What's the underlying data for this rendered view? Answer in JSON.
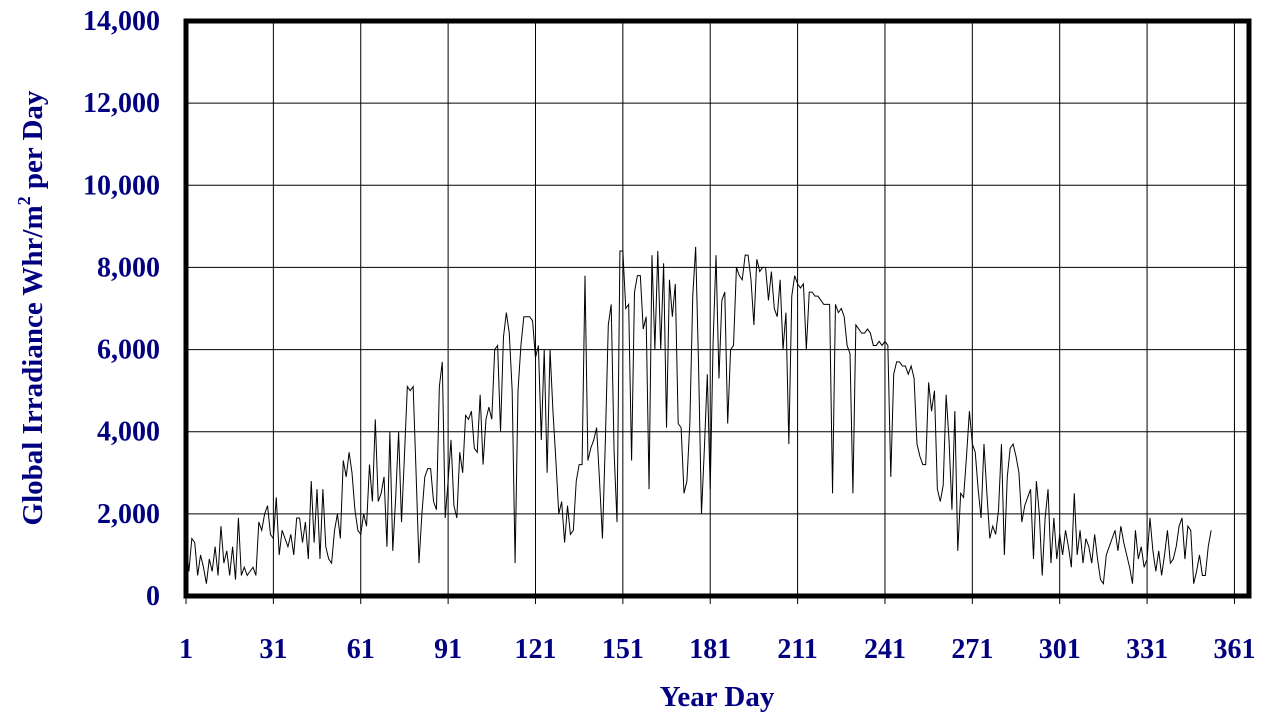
{
  "chart_data": {
    "type": "line",
    "title": "",
    "xlabel": "Year Day",
    "ylabel_main": "Global Irradiance Whr/m",
    "ylabel_sup": "2",
    "ylabel_tail": " per Day",
    "xlim": [
      1,
      366
    ],
    "ylim": [
      0,
      14000
    ],
    "xticks": [
      1,
      31,
      61,
      91,
      121,
      151,
      181,
      211,
      241,
      271,
      301,
      331,
      361
    ],
    "yticks": [
      0,
      2000,
      4000,
      6000,
      8000,
      10000,
      12000,
      14000
    ],
    "ytick_labels": [
      "0",
      "2,000",
      "4,000",
      "6,000",
      "8,000",
      "10,000",
      "12,000",
      "14,000"
    ],
    "grid": true,
    "legend": "none",
    "line_color": "#000000",
    "label_color": "#000080",
    "series": [
      {
        "values": [
          1300,
          600,
          1400,
          1300,
          500,
          1000,
          700,
          300,
          900,
          600,
          1200,
          500,
          1700,
          800,
          1100,
          500,
          1200,
          400,
          1900,
          500,
          700,
          500,
          600,
          700,
          500,
          1800,
          1600,
          2000,
          2200,
          1500,
          1400,
          2400,
          1000,
          1600,
          1400,
          1200,
          1500,
          1000,
          1900,
          1900,
          1300,
          1800,
          900,
          2800,
          1300,
          2600,
          900,
          2600,
          1200,
          900,
          800,
          1600,
          2000,
          1400,
          3300,
          2900,
          3500,
          3000,
          2100,
          1600,
          1500,
          2000,
          1700,
          3200,
          2300,
          4300,
          2300,
          2500,
          2900,
          1200,
          4000,
          1100,
          2400,
          4000,
          1800,
          3400,
          5100,
          5000,
          5100,
          3000,
          800,
          2000,
          2900,
          3100,
          3100,
          2300,
          2100,
          5100,
          5700,
          1900,
          2800,
          3800,
          2200,
          1900,
          3500,
          3000,
          4400,
          4300,
          4500,
          3600,
          3500,
          4900,
          3200,
          4300,
          4600,
          4300,
          6000,
          6100,
          4000,
          6300,
          6900,
          6400,
          5000,
          800,
          5000,
          6100,
          6800,
          6800,
          6800,
          6700,
          5800,
          6100,
          3800,
          6000,
          3000,
          6000,
          4500,
          3300,
          2000,
          2300,
          1300,
          2200,
          1500,
          1600,
          2800,
          3200,
          3200,
          7800,
          3300,
          3600,
          3800,
          4100,
          2800,
          1400,
          3800,
          6600,
          7100,
          3500,
          1800,
          8400,
          8400,
          7000,
          7100,
          3300,
          7400,
          7800,
          7800,
          6500,
          6800,
          2600,
          8300,
          6000,
          8400,
          6000,
          8100,
          4100,
          7700,
          6800,
          7600,
          4200,
          4100,
          2500,
          2800,
          4200,
          7300,
          8500,
          5600,
          2000,
          3600,
          5400,
          2600,
          6200,
          8300,
          5300,
          7200,
          7400,
          4200,
          6000,
          6100,
          8000,
          7800,
          7700,
          8300,
          8300,
          7700,
          6600,
          8200,
          7900,
          8000,
          8000,
          7200,
          7900,
          7000,
          6800,
          7700,
          6000,
          6900,
          3700,
          7300,
          7800,
          7600,
          7500,
          7600,
          6000,
          7400,
          7400,
          7300,
          7300,
          7200,
          7100,
          7100,
          7100,
          2500,
          7100,
          6900,
          7000,
          6800,
          6100,
          5900,
          2500,
          6600,
          6500,
          6400,
          6400,
          6500,
          6400,
          6100,
          6100,
          6200,
          6100,
          6200,
          6100,
          2900,
          5400,
          5700,
          5700,
          5600,
          5600,
          5400,
          5600,
          5300,
          3700,
          3400,
          3200,
          3200,
          5200,
          4500,
          5000,
          2600,
          2300,
          2700,
          4900,
          3800,
          2100,
          4500,
          1100,
          2500,
          2400,
          3400,
          4500,
          3700,
          3500,
          2600,
          1900,
          3700,
          2500,
          1400,
          1700,
          1500,
          2100,
          3700,
          1000,
          2900,
          3600,
          3700,
          3400,
          3000,
          1800,
          2200,
          2400,
          2600,
          900,
          2800,
          2000,
          500,
          1900,
          2600,
          800,
          1900,
          900,
          1500,
          1000,
          1600,
          1200,
          700,
          2500,
          1000,
          1600,
          800,
          1400,
          1200,
          800,
          1500,
          900,
          400,
          300,
          1000,
          1200,
          1400,
          1600,
          1100,
          1700,
          1300,
          1000,
          700,
          300,
          1600,
          900,
          1200,
          700,
          900,
          1900,
          1100,
          600,
          1100,
          500,
          1000,
          1600,
          800,
          900,
          1200,
          1700,
          1900,
          900,
          1700,
          1600,
          300,
          600,
          1000,
          500,
          500,
          1200,
          1600
        ]
      }
    ]
  }
}
